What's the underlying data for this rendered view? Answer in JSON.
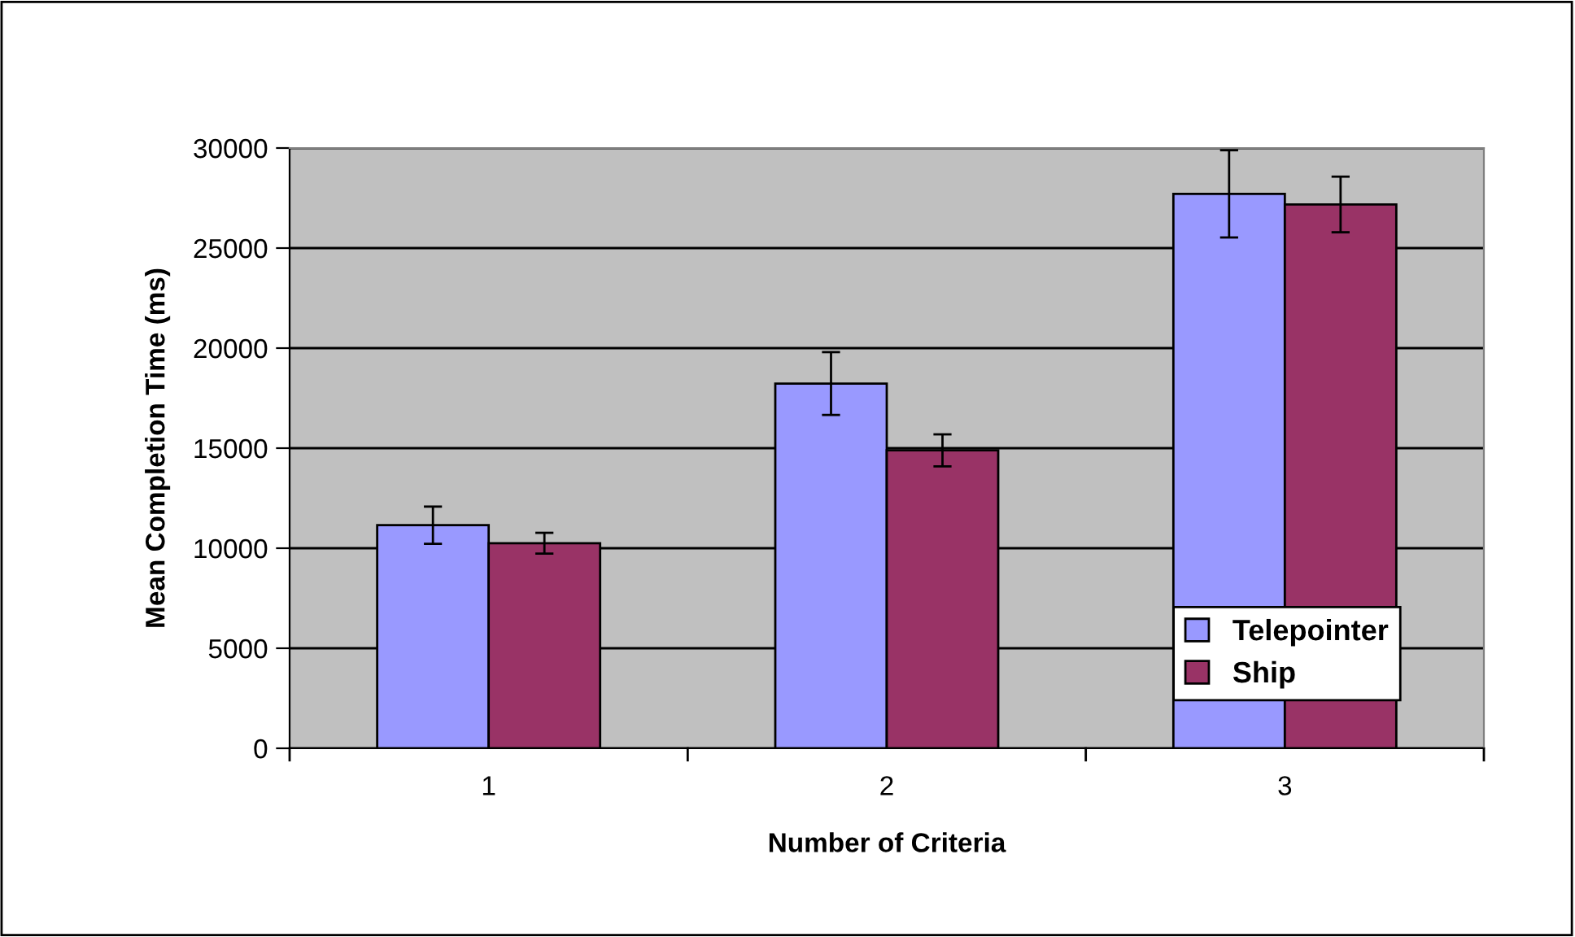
{
  "chart_data": {
    "type": "bar",
    "xlabel": "Number of Criteria",
    "ylabel": "Mean Completion Time (ms)",
    "categories": [
      "1",
      "2",
      "3"
    ],
    "series": [
      {
        "name": "Telepointer",
        "color": "#9999ff",
        "values": [
          11150,
          18230,
          27710
        ],
        "errors": [
          930,
          1570,
          2180
        ]
      },
      {
        "name": "Ship",
        "color": "#993366",
        "values": [
          10250,
          14890,
          27180
        ],
        "errors": [
          520,
          800,
          1390
        ]
      }
    ],
    "ylim": [
      0,
      30000
    ],
    "yticks": [
      0,
      5000,
      10000,
      15000,
      20000,
      25000,
      30000
    ],
    "grid": "y",
    "legend": "bottom right"
  }
}
